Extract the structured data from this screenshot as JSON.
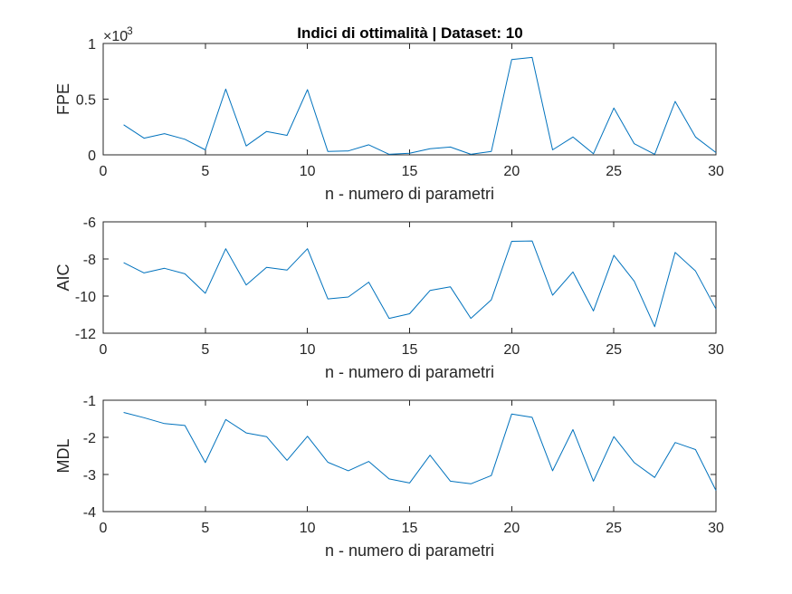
{
  "title": "Indici di ottimalità | Dataset: 10",
  "colors": {
    "series": "#0072BD",
    "axis": "#262626",
    "background": "#ffffff"
  },
  "chart_data": [
    {
      "id": "fpe",
      "type": "line",
      "title": "Indici di ottimalità | Dataset: 10",
      "xlabel": "n - numero di parametri",
      "ylabel": "FPE",
      "xlim": [
        0,
        30
      ],
      "ylim": [
        0,
        1
      ],
      "xticks": [
        0,
        5,
        10,
        15,
        20,
        25,
        30
      ],
      "xtick_labels": [
        "0",
        "5",
        "10",
        "15",
        "20",
        "25",
        "30"
      ],
      "yticks": [
        0,
        0.5,
        1
      ],
      "ytick_labels": [
        "0",
        "0.5",
        "1"
      ],
      "exponent_label": "×10",
      "exponent_power": "-3",
      "x": [
        1,
        2,
        3,
        4,
        5,
        6,
        7,
        8,
        9,
        10,
        11,
        12,
        13,
        14,
        15,
        16,
        17,
        18,
        19,
        20,
        21,
        22,
        23,
        24,
        25,
        26,
        27,
        28,
        29,
        30
      ],
      "series": [
        {
          "name": "FPE",
          "values": [
            0.27,
            0.15,
            0.19,
            0.14,
            0.045,
            0.59,
            0.08,
            0.21,
            0.175,
            0.585,
            0.03,
            0.035,
            0.09,
            0.005,
            0.015,
            0.055,
            0.07,
            0.005,
            0.03,
            0.855,
            0.875,
            0.045,
            0.16,
            0.01,
            0.42,
            0.1,
            0.005,
            0.48,
            0.16,
            0.02
          ]
        }
      ]
    },
    {
      "id": "aic",
      "type": "line",
      "xlabel": "n - numero di parametri",
      "ylabel": "AIC",
      "xlim": [
        0,
        30
      ],
      "ylim": [
        -12,
        -6
      ],
      "xticks": [
        0,
        5,
        10,
        15,
        20,
        25,
        30
      ],
      "xtick_labels": [
        "0",
        "5",
        "10",
        "15",
        "20",
        "25",
        "30"
      ],
      "yticks": [
        -12,
        -10,
        -8,
        -6
      ],
      "ytick_labels": [
        "-12",
        "-10",
        "-8",
        "-6"
      ],
      "x": [
        1,
        2,
        3,
        4,
        5,
        6,
        7,
        8,
        9,
        10,
        11,
        12,
        13,
        14,
        15,
        16,
        17,
        18,
        19,
        20,
        21,
        22,
        23,
        24,
        25,
        26,
        27,
        28,
        29,
        30
      ],
      "series": [
        {
          "name": "AIC",
          "values": [
            -8.2,
            -8.75,
            -8.5,
            -8.8,
            -9.85,
            -7.45,
            -9.4,
            -8.45,
            -8.6,
            -7.45,
            -10.15,
            -10.05,
            -9.25,
            -11.2,
            -10.95,
            -9.7,
            -9.5,
            -11.2,
            -10.2,
            -7.05,
            -7.03,
            -9.95,
            -8.7,
            -10.8,
            -7.8,
            -9.2,
            -11.65,
            -7.65,
            -8.65,
            -10.7
          ]
        }
      ]
    },
    {
      "id": "mdl",
      "type": "line",
      "xlabel": "n - numero di parametri",
      "ylabel": "MDL",
      "xlim": [
        0,
        30
      ],
      "ylim": [
        -4,
        -1
      ],
      "xticks": [
        0,
        5,
        10,
        15,
        20,
        25,
        30
      ],
      "xtick_labels": [
        "0",
        "5",
        "10",
        "15",
        "20",
        "25",
        "30"
      ],
      "yticks": [
        -4,
        -3,
        -2,
        -1
      ],
      "ytick_labels": [
        "-4",
        "-3",
        "-2",
        "-1"
      ],
      "x": [
        1,
        2,
        3,
        4,
        5,
        6,
        7,
        8,
        9,
        10,
        11,
        12,
        13,
        14,
        15,
        16,
        17,
        18,
        19,
        20,
        21,
        22,
        23,
        24,
        25,
        26,
        27,
        28,
        29,
        30
      ],
      "series": [
        {
          "name": "MDL",
          "values": [
            -1.33,
            -1.47,
            -1.63,
            -1.68,
            -2.68,
            -1.52,
            -1.88,
            -1.98,
            -2.62,
            -1.97,
            -2.67,
            -2.9,
            -2.65,
            -3.12,
            -3.23,
            -2.48,
            -3.18,
            -3.25,
            -3.03,
            -1.37,
            -1.46,
            -2.9,
            -1.79,
            -3.18,
            -1.98,
            -2.68,
            -3.08,
            -2.14,
            -2.33,
            -3.43
          ]
        }
      ]
    }
  ]
}
